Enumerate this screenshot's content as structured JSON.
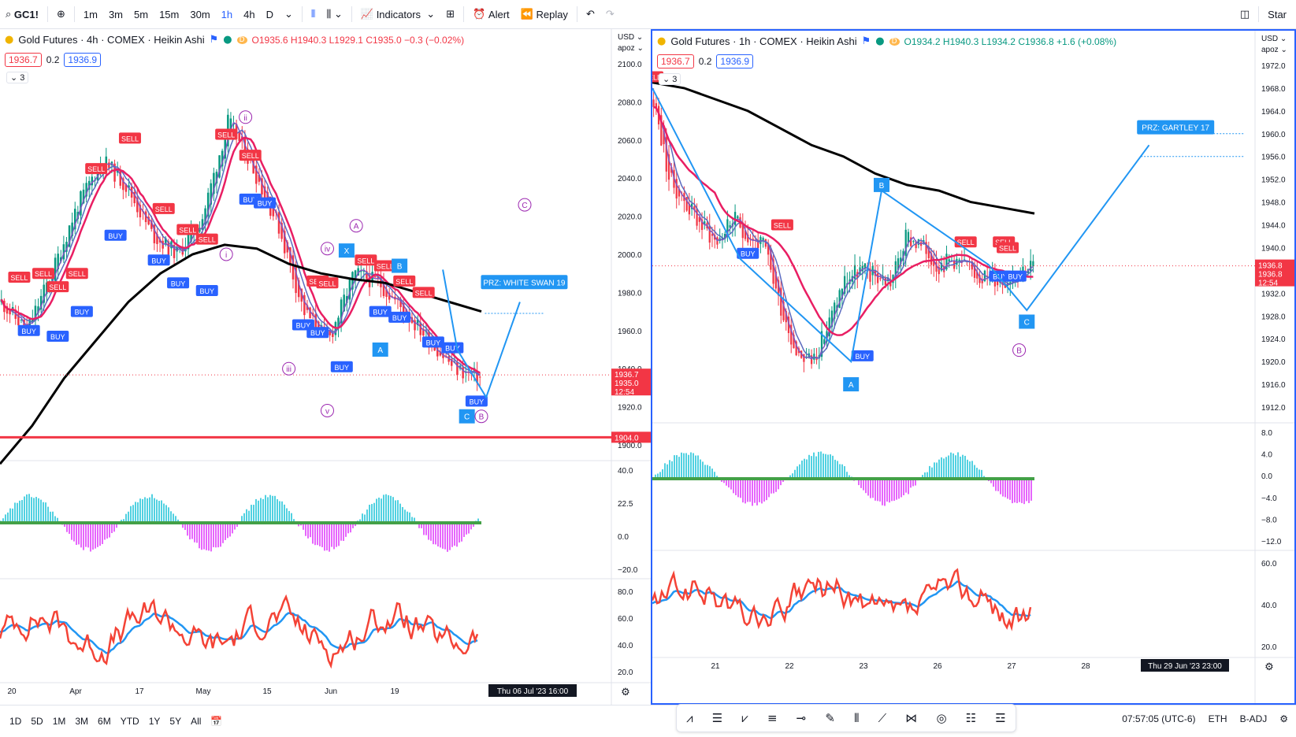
{
  "toolbar": {
    "symbol": "GC1!",
    "intervals": [
      "1m",
      "3m",
      "5m",
      "15m",
      "30m",
      "1h",
      "4h",
      "D"
    ],
    "active_interval": "1h",
    "indicators": "Indicators",
    "alert": "Alert",
    "replay": "Replay",
    "star": "Star"
  },
  "left": {
    "title": "Gold Futures · 4h · COMEX · Heikin Ashi",
    "ohlc": "O1935.6 H1940.3 L1929.1 C1935.0 −0.3 (−0.02%)",
    "bid": "1936.7",
    "spread": "0.2",
    "ask": "1936.9",
    "collapse": "3",
    "currency": "USD",
    "scale_mode": "apoz",
    "price_ticks": [
      "2100.0",
      "2080.0",
      "2060.0",
      "2040.0",
      "2020.0",
      "2000.0",
      "1980.0",
      "1960.0",
      "1940.0",
      "1920.0",
      "1900.0"
    ],
    "price_tick_values": [
      2100,
      2080,
      2060,
      2040,
      2020,
      2000,
      1980,
      1960,
      1940,
      1920,
      1900
    ],
    "last_price": "1936.7",
    "last_price2": "1935.0",
    "countdown": "12:54",
    "support_label": "1904.0",
    "support_value": 1904,
    "prz_label": "PRZ: WHITE SWAN 19",
    "x_labels": [
      "20",
      "Apr",
      "17",
      "May",
      "15",
      "Jun",
      "19"
    ],
    "crosshair_date": "Thu 06 Jul '23   16:00",
    "osc_ticks": [
      "40.0",
      "22.5",
      "0.0",
      "−20.0"
    ],
    "rsi_ticks": [
      "80.0",
      "60.0",
      "40.0",
      "20.0"
    ],
    "waves": [
      "ii",
      "i",
      "iv",
      "iii",
      "v",
      "A",
      "B",
      "C",
      "X"
    ]
  },
  "right": {
    "title": "Gold Futures · 1h · COMEX · Heikin Ashi",
    "ohlc": "O1934.2 H1940.3 L1934.2 C1936.8 +1.6 (+0.08%)",
    "bid": "1936.7",
    "spread": "0.2",
    "ask": "1936.9",
    "collapse": "3",
    "currency": "USD",
    "scale_mode": "apoz",
    "price_ticks": [
      "1972.0",
      "1968.0",
      "1964.0",
      "1960.0",
      "1956.0",
      "1952.0",
      "1948.0",
      "1944.0",
      "1940.0",
      "1936.0",
      "1932.0",
      "1928.0",
      "1924.0",
      "1920.0",
      "1916.0",
      "1912.0"
    ],
    "price_tick_values": [
      1972,
      1968,
      1964,
      1960,
      1956,
      1952,
      1948,
      1944,
      1940,
      1936,
      1932,
      1928,
      1924,
      1920,
      1916,
      1912
    ],
    "last_price": "1936.8",
    "countdown": "12:54",
    "last_price2": "1936.8",
    "prz_label": "PRZ: GARTLEY 17",
    "x_labels": [
      "21",
      "22",
      "23",
      "26",
      "27",
      "28"
    ],
    "crosshair_date": "Thu 29 Jun '23   23:00",
    "osc_ticks": [
      "8.0",
      "4.0",
      "0.0",
      "−4.0",
      "−8.0",
      "−12.0"
    ],
    "rsi_ticks": [
      "60.0",
      "40.0",
      "20.0"
    ],
    "points": [
      "A",
      "B",
      "C"
    ],
    "wave_b": "B"
  },
  "signals": {
    "buy": "BUY",
    "sell": "SELL"
  },
  "bottom": {
    "ranges": [
      "1D",
      "5D",
      "1M",
      "3M",
      "6M",
      "YTD",
      "1Y",
      "5Y",
      "All"
    ],
    "time": "07:57:05 (UTC-6)",
    "session": "ETH",
    "adj": "B-ADJ"
  },
  "colors": {
    "accent": "#2962ff",
    "up": "#089981",
    "down": "#f23645",
    "ema": "#e91e63",
    "ma200": "#000000",
    "wave": "#9c27b0"
  }
}
